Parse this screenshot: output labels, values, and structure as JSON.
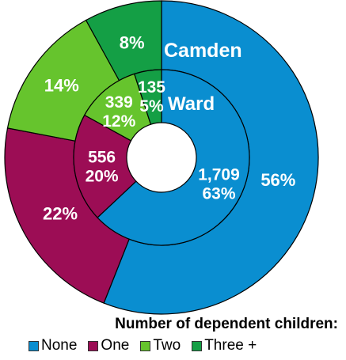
{
  "chart_data": {
    "type": "pie",
    "title": "",
    "legend_title": "Number of dependent children:",
    "legend_placement": "bottom",
    "categories": [
      "None",
      "One",
      "Two",
      "Three +"
    ],
    "colors": [
      "#0a8ed0",
      "#9c0d55",
      "#66c42d",
      "#149f45"
    ],
    "series": [
      {
        "name": "Camden",
        "ring": "outer",
        "values": [
          56,
          22,
          14,
          8
        ],
        "labels": [
          "56%",
          "22%",
          "14%",
          "8%"
        ]
      },
      {
        "name": "Ward",
        "ring": "inner",
        "counts": [
          1709,
          556,
          339,
          135
        ],
        "values": [
          63,
          20,
          12,
          5
        ],
        "labels": [
          [
            "1,709",
            "63%"
          ],
          [
            "556",
            "20%"
          ],
          [
            "339",
            "12%"
          ],
          [
            "135",
            "5%"
          ]
        ]
      }
    ]
  }
}
